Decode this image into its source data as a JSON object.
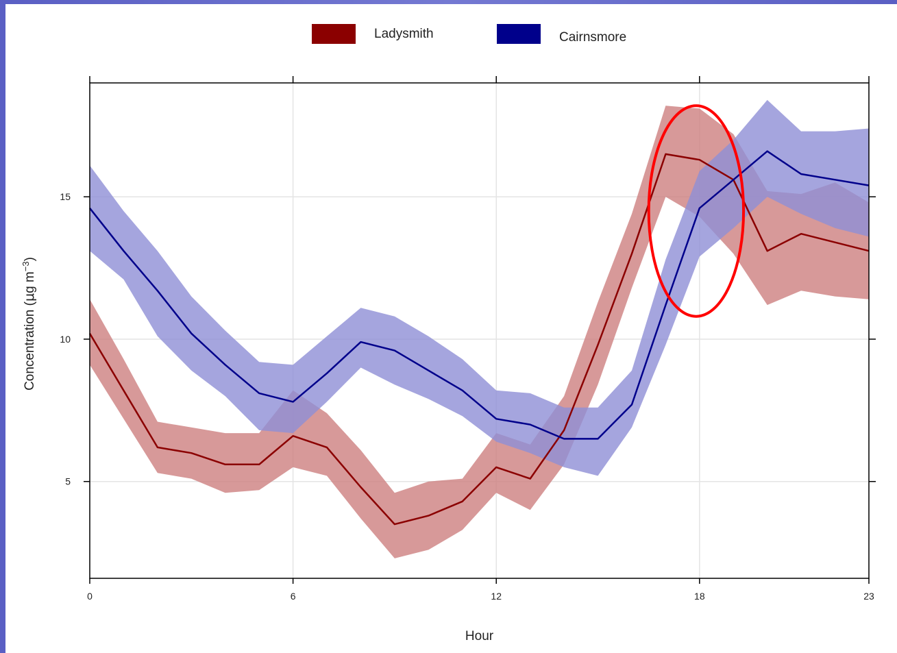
{
  "chart_data": {
    "type": "line",
    "xlabel": "Hour",
    "ylabel_main": "Concentration (",
    "ylabel_mu": "μ",
    "ylabel_unit": "g m",
    "ylabel_exp": "−3",
    "ylabel_close": ")",
    "xlim": [
      0,
      23
    ],
    "ylim": [
      1.6,
      19.0
    ],
    "xticks": [
      0,
      6,
      12,
      18,
      23
    ],
    "yticks": [
      5,
      10,
      15
    ],
    "grid": true,
    "legend_position": "top-center",
    "x": [
      0,
      1,
      2,
      3,
      4,
      5,
      6,
      7,
      8,
      9,
      10,
      11,
      12,
      13,
      14,
      15,
      16,
      17,
      18,
      19,
      20,
      21,
      22,
      23
    ],
    "series": [
      {
        "name": "Ladysmith",
        "color": "#8b0000",
        "band_color": "#cd8080",
        "values": [
          10.2,
          8.2,
          6.2,
          6.0,
          5.6,
          5.6,
          6.6,
          6.2,
          4.8,
          3.5,
          3.8,
          4.3,
          5.5,
          5.1,
          6.8,
          9.8,
          13.0,
          16.5,
          16.3,
          15.6,
          13.1,
          13.7,
          13.4,
          13.1
        ],
        "lower": [
          9.1,
          7.2,
          5.3,
          5.1,
          4.6,
          4.7,
          5.5,
          5.2,
          3.7,
          2.3,
          2.6,
          3.3,
          4.6,
          4.0,
          5.6,
          8.4,
          11.8,
          15.0,
          14.3,
          13.0,
          11.2,
          11.7,
          11.5,
          11.4
        ],
        "upper": [
          11.4,
          9.3,
          7.1,
          6.9,
          6.7,
          6.7,
          8.2,
          7.4,
          6.1,
          4.6,
          5.0,
          5.1,
          6.7,
          6.3,
          8.0,
          11.3,
          14.4,
          18.2,
          18.1,
          17.2,
          15.2,
          15.1,
          15.5,
          14.8
        ]
      },
      {
        "name": "Cairnsmore",
        "color": "#00008b",
        "band_color": "#8f8fd6",
        "values": [
          14.6,
          13.1,
          11.7,
          10.2,
          9.1,
          8.1,
          7.8,
          8.8,
          9.9,
          9.6,
          8.9,
          8.2,
          7.2,
          7.0,
          6.5,
          6.5,
          7.7,
          11.2,
          14.6,
          15.6,
          16.6,
          15.8,
          15.6,
          15.4
        ],
        "lower": [
          13.1,
          12.1,
          10.1,
          8.9,
          8.0,
          6.8,
          6.7,
          7.8,
          9.0,
          8.4,
          7.9,
          7.3,
          6.4,
          6.0,
          5.5,
          5.2,
          6.9,
          9.8,
          12.9,
          13.9,
          15.0,
          14.4,
          13.9,
          13.6
        ],
        "upper": [
          16.1,
          14.5,
          13.1,
          11.5,
          10.3,
          9.2,
          9.1,
          10.1,
          11.1,
          10.8,
          10.1,
          9.3,
          8.2,
          8.1,
          7.6,
          7.6,
          8.9,
          12.8,
          15.9,
          17.0,
          18.4,
          17.3,
          17.3,
          17.4
        ]
      }
    ],
    "annotation": {
      "shape": "ellipse",
      "color": "#ff0000",
      "center_x": 17.9,
      "center_y": 14.5,
      "rx_hours": 1.4,
      "ry_units": 3.7
    }
  }
}
